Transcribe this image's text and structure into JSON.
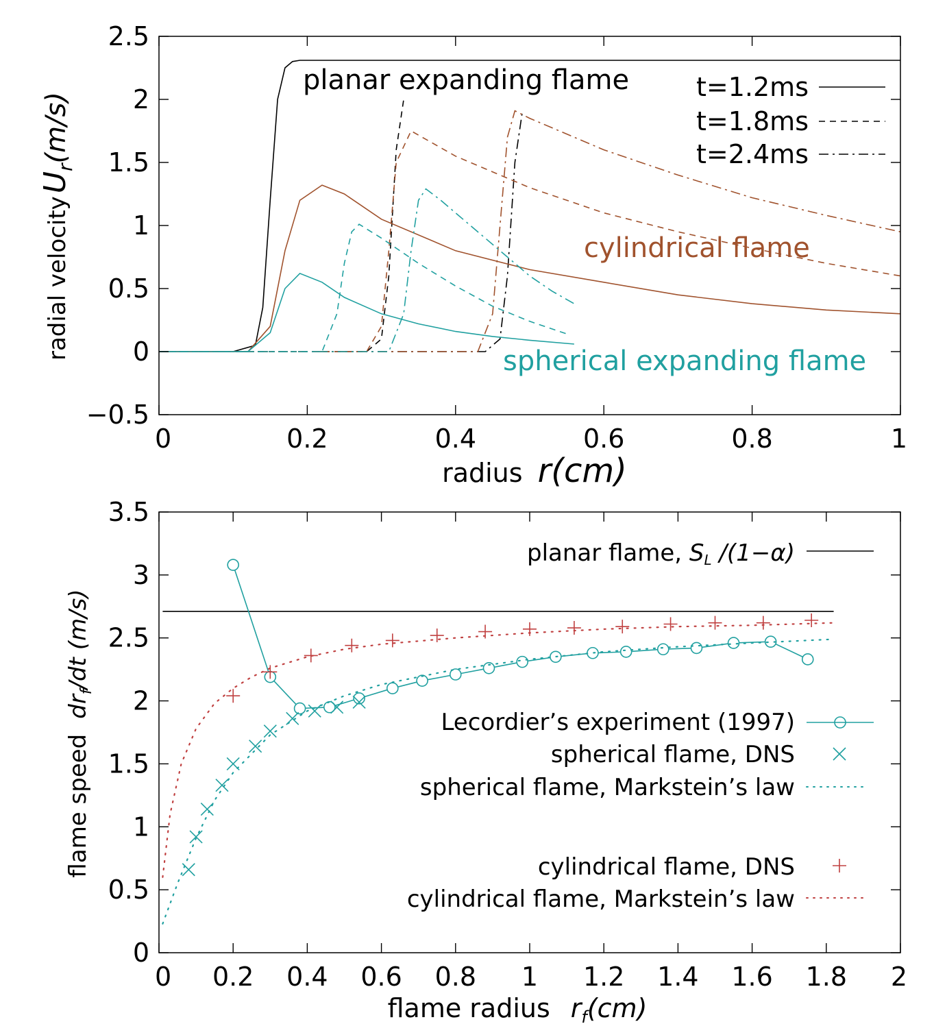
{
  "chart_data": [
    {
      "type": "line",
      "xlabel": "radius",
      "xlabel_symbol": "r(cm)",
      "ylabel": "radial velocity",
      "ylabel_symbol_main": "U",
      "ylabel_symbol_sub": "r",
      "ylabel_symbol_unit": "(m/s)",
      "xlim": [
        0,
        1
      ],
      "ylim": [
        -0.5,
        2.5
      ],
      "xticks": [
        0,
        0.2,
        0.4,
        0.6,
        0.8,
        1
      ],
      "xtick_labels": [
        "0",
        "0.2",
        "0.4",
        "0.6",
        "0.8",
        "1"
      ],
      "yticks": [
        -0.5,
        0,
        0.5,
        1,
        1.5,
        2,
        2.5
      ],
      "ytick_labels": [
        "−0.5",
        "0",
        "0.5",
        "1",
        "1.5",
        "2",
        "2.5"
      ],
      "legend_position": "top-right",
      "legend": [
        {
          "label": "t=1.2ms",
          "dash": "solid"
        },
        {
          "label": "t=1.8ms",
          "dash": "dashed"
        },
        {
          "label": "t=2.4ms",
          "dash": "dashdot"
        }
      ],
      "annotations": [
        {
          "text": "planar expanding flame",
          "color": "#000000"
        },
        {
          "text": "cylindrical flame",
          "color": "#a0522d"
        },
        {
          "text": "spherical expanding flame",
          "color": "#20a0a0"
        }
      ],
      "series": [
        {
          "group": "planar",
          "time": "t=1.2ms",
          "color": "#000000",
          "dash": "solid",
          "x": [
            0,
            0.1,
            0.13,
            0.14,
            0.15,
            0.16,
            0.17,
            0.18,
            0.19,
            1.0
          ],
          "y": [
            0,
            0,
            0.05,
            0.35,
            1.2,
            2.0,
            2.25,
            2.3,
            2.31,
            2.31
          ]
        },
        {
          "group": "planar",
          "time": "t=1.8ms",
          "color": "#000000",
          "dash": "dashed",
          "x": [
            0,
            0.28,
            0.3,
            0.31,
            0.32,
            0.33
          ],
          "y": [
            0,
            0,
            0.1,
            0.6,
            1.6,
            2.0
          ]
        },
        {
          "group": "planar",
          "time": "t=2.4ms",
          "color": "#000000",
          "dash": "dashdot",
          "x": [
            0,
            0.44,
            0.46,
            0.47,
            0.48,
            0.49
          ],
          "y": [
            0,
            0,
            0.1,
            0.6,
            1.5,
            1.9
          ]
        },
        {
          "group": "cylindrical",
          "time": "t=1.2ms",
          "color": "#a0522d",
          "dash": "solid",
          "x": [
            0,
            0.12,
            0.15,
            0.17,
            0.19,
            0.22,
            0.25,
            0.3,
            0.4,
            0.5,
            0.6,
            0.7,
            0.8,
            0.9,
            1.0
          ],
          "y": [
            0,
            0,
            0.2,
            0.8,
            1.2,
            1.32,
            1.25,
            1.05,
            0.8,
            0.65,
            0.55,
            0.45,
            0.38,
            0.33,
            0.3
          ]
        },
        {
          "group": "cylindrical",
          "time": "t=1.8ms",
          "color": "#a0522d",
          "dash": "dashed",
          "x": [
            0,
            0.28,
            0.3,
            0.31,
            0.32,
            0.34,
            0.4,
            0.5,
            0.6,
            0.7,
            0.8,
            0.9,
            1.0
          ],
          "y": [
            0,
            0,
            0.2,
            0.8,
            1.5,
            1.75,
            1.55,
            1.3,
            1.1,
            0.95,
            0.82,
            0.7,
            0.6
          ]
        },
        {
          "group": "cylindrical",
          "time": "t=2.4ms",
          "color": "#a0522d",
          "dash": "dashdot",
          "x": [
            0,
            0.43,
            0.45,
            0.46,
            0.47,
            0.48,
            0.5,
            0.6,
            0.7,
            0.8,
            0.9,
            1.0
          ],
          "y": [
            0,
            0,
            0.3,
            1.0,
            1.7,
            1.91,
            1.85,
            1.6,
            1.4,
            1.22,
            1.08,
            0.95
          ]
        },
        {
          "group": "spherical",
          "time": "t=1.2ms",
          "color": "#20a0a0",
          "dash": "solid",
          "x": [
            0,
            0.12,
            0.15,
            0.17,
            0.19,
            0.22,
            0.25,
            0.3,
            0.35,
            0.4,
            0.45,
            0.5,
            0.56
          ],
          "y": [
            0,
            0,
            0.15,
            0.5,
            0.62,
            0.55,
            0.43,
            0.3,
            0.22,
            0.16,
            0.12,
            0.09,
            0.06
          ]
        },
        {
          "group": "spherical",
          "time": "t=1.8ms",
          "color": "#20a0a0",
          "dash": "dashed",
          "x": [
            0,
            0.22,
            0.24,
            0.25,
            0.26,
            0.27,
            0.3,
            0.35,
            0.4,
            0.45,
            0.5,
            0.55
          ],
          "y": [
            0,
            0,
            0.3,
            0.7,
            0.95,
            1.01,
            0.9,
            0.7,
            0.52,
            0.36,
            0.24,
            0.14
          ]
        },
        {
          "group": "spherical",
          "time": "t=2.4ms",
          "color": "#20a0a0",
          "dash": "dashdot",
          "x": [
            0,
            0.31,
            0.33,
            0.34,
            0.35,
            0.36,
            0.38,
            0.42,
            0.46,
            0.5,
            0.53,
            0.56
          ],
          "y": [
            0,
            0,
            0.3,
            0.8,
            1.2,
            1.29,
            1.2,
            1.0,
            0.8,
            0.6,
            0.48,
            0.38
          ]
        }
      ]
    },
    {
      "type": "line",
      "xlabel": "flame radius",
      "xlabel_symbol_main": "r",
      "xlabel_symbol_sub": "f",
      "xlabel_symbol_unit": "(cm)",
      "ylabel": "flame speed",
      "ylabel_symbol_a": "dr",
      "ylabel_symbol_sub": "f",
      "ylabel_symbol_b": "/dt (m/s)",
      "xlim": [
        0,
        2
      ],
      "ylim": [
        0,
        3.5
      ],
      "xticks": [
        0,
        0.2,
        0.4,
        0.6,
        0.8,
        1,
        1.2,
        1.4,
        1.6,
        1.8,
        2
      ],
      "xtick_labels": [
        "0",
        "0.2",
        "0.4",
        "0.6",
        "0.8",
        "1",
        "1.2",
        "1.4",
        "1.6",
        "1.8",
        "2"
      ],
      "yticks": [
        0,
        0.5,
        1,
        1.5,
        2,
        2.5,
        3,
        3.5
      ],
      "ytick_labels": [
        "0",
        "0.5",
        "1",
        "1.5",
        "2",
        "2.5",
        "3",
        "3.5"
      ],
      "legend_position": "right",
      "series": [
        {
          "name_a": "planar flame, ",
          "name_b": "S",
          "name_sub": "L",
          "name_c": " /(1−α)",
          "color": "#000000",
          "style": "line",
          "x": [
            0.01,
            1.82
          ],
          "y": [
            2.71,
            2.71
          ]
        },
        {
          "name": "Lecordier’s experiment (1997)",
          "color": "#20a0a0",
          "style": "line-circle",
          "x": [
            0.2,
            0.3,
            0.38,
            0.46,
            0.54,
            0.63,
            0.71,
            0.8,
            0.89,
            0.98,
            1.07,
            1.17,
            1.26,
            1.36,
            1.45,
            1.55,
            1.65,
            1.75
          ],
          "y": [
            3.08,
            2.19,
            1.94,
            1.95,
            2.02,
            2.1,
            2.16,
            2.21,
            2.26,
            2.31,
            2.35,
            2.38,
            2.39,
            2.41,
            2.42,
            2.46,
            2.47,
            2.33
          ]
        },
        {
          "name": "spherical flame, DNS",
          "color": "#20a0a0",
          "style": "cross",
          "x": [
            0.08,
            0.1,
            0.13,
            0.17,
            0.2,
            0.26,
            0.3,
            0.36,
            0.42,
            0.48,
            0.54
          ],
          "y": [
            0.66,
            0.92,
            1.14,
            1.33,
            1.5,
            1.64,
            1.76,
            1.86,
            1.92,
            1.95,
            1.99
          ]
        },
        {
          "name": "spherical flame, Markstein’s law",
          "color": "#20a0a0",
          "style": "dotted",
          "x": [
            0.01,
            0.05,
            0.1,
            0.15,
            0.2,
            0.3,
            0.4,
            0.5,
            0.6,
            0.8,
            1.0,
            1.2,
            1.4,
            1.6,
            1.82
          ],
          "y": [
            0.23,
            0.55,
            0.91,
            1.21,
            1.43,
            1.73,
            1.92,
            2.04,
            2.13,
            2.25,
            2.33,
            2.39,
            2.43,
            2.46,
            2.49
          ]
        },
        {
          "name": "cylindrical flame, DNS",
          "color": "#c04040",
          "style": "plus",
          "x": [
            0.2,
            0.3,
            0.41,
            0.52,
            0.63,
            0.75,
            0.88,
            1.0,
            1.12,
            1.25,
            1.38,
            1.5,
            1.63,
            1.76
          ],
          "y": [
            2.04,
            2.23,
            2.36,
            2.44,
            2.48,
            2.52,
            2.55,
            2.57,
            2.58,
            2.59,
            2.61,
            2.62,
            2.62,
            2.64
          ]
        },
        {
          "name": "cylindrical flame, Markstein’s law",
          "color": "#c04040",
          "style": "dotted",
          "x": [
            0.01,
            0.03,
            0.06,
            0.1,
            0.15,
            0.2,
            0.25,
            0.3,
            0.4,
            0.5,
            0.6,
            0.8,
            1.0,
            1.2,
            1.4,
            1.6,
            1.82
          ],
          "y": [
            0.6,
            1.1,
            1.5,
            1.78,
            1.98,
            2.1,
            2.19,
            2.26,
            2.35,
            2.41,
            2.45,
            2.5,
            2.54,
            2.57,
            2.59,
            2.6,
            2.62
          ]
        }
      ]
    }
  ]
}
